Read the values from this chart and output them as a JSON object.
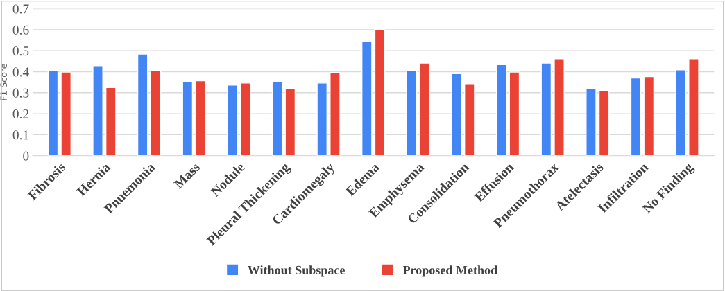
{
  "chart_data": {
    "type": "bar",
    "ylabel": "F1 Score",
    "categories": [
      "Fibrosis",
      "Hernia",
      "Pnuemonia",
      "Mass",
      "Nodule",
      "Pleural Thickening",
      "Cardiomegaly",
      "Edema",
      "Emphysema",
      "Consolidation",
      "Effusion",
      "Pneumothorax",
      "Atelectasis",
      "Infiltration",
      "No Finding"
    ],
    "series": [
      {
        "name": "Without Subspace",
        "color": "#4285f4",
        "values": [
          0.405,
          0.429,
          0.484,
          0.352,
          0.336,
          0.352,
          0.346,
          0.546,
          0.405,
          0.391,
          0.434,
          0.441,
          0.318,
          0.37,
          0.409
        ]
      },
      {
        "name": "Proposed Method",
        "color": "#ea4335",
        "values": [
          0.398,
          0.325,
          0.405,
          0.357,
          0.346,
          0.32,
          0.396,
          0.602,
          0.441,
          0.343,
          0.398,
          0.462,
          0.308,
          0.377,
          0.462
        ]
      }
    ],
    "ylim": [
      0,
      0.7
    ],
    "yticks": [
      0,
      0.1,
      0.2,
      0.3,
      0.4,
      0.5,
      0.6,
      0.7
    ],
    "grid": "y",
    "legend": "bottom"
  }
}
